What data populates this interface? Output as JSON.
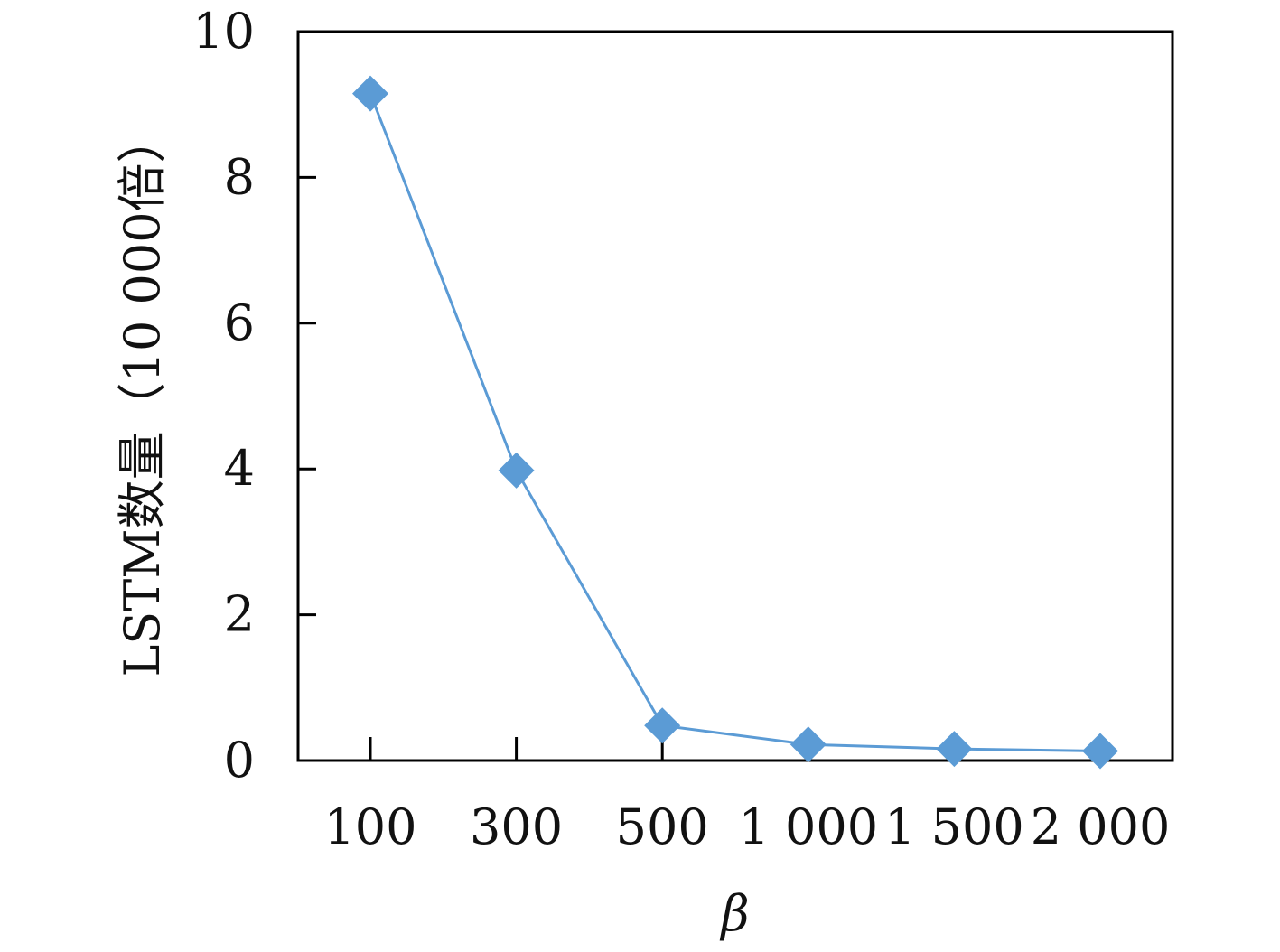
{
  "chart_data": {
    "type": "line",
    "categories": [
      "100",
      "300",
      "500",
      "1 000",
      "1 500",
      "2 000"
    ],
    "series": [
      {
        "values": [
          9.15,
          3.98,
          0.48,
          0.22,
          0.16,
          0.13
        ]
      }
    ],
    "xlabel": "β",
    "ylabel": "LSTM数量（10 000倍）",
    "ylim": [
      0,
      10
    ],
    "yticks": [
      0,
      2,
      4,
      6,
      8,
      10
    ],
    "grid": false,
    "legend": "none",
    "marker": "diamond",
    "colors": {
      "series": "#5b9bd5",
      "axis": "#000000"
    }
  }
}
